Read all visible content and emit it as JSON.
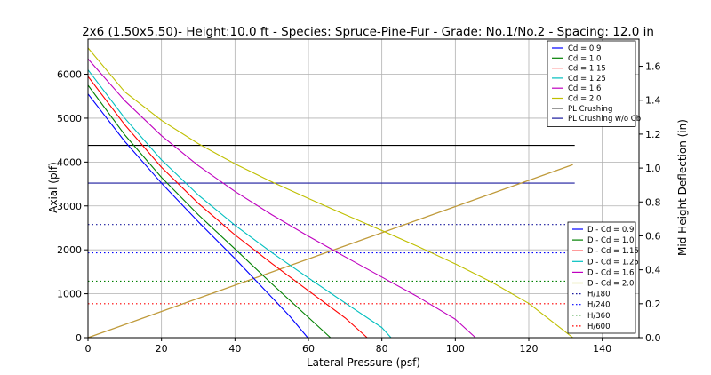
{
  "chart_data": {
    "type": "line",
    "title": "2x6 (1.50x5.50)- Height:10.0 ft - Species: Spruce-Pine-Fur - Grade: No.1/No.2 - Spacing: 12.0 in",
    "xlabel": "Lateral Pressure (psf)",
    "ylabel": "Axial (plf)",
    "y2label": "Mid Height Deflection (in)",
    "xlim": [
      0,
      150
    ],
    "ylim": [
      0,
      6800
    ],
    "y2lim": [
      0,
      1.76
    ],
    "xticks": [
      0,
      20,
      40,
      60,
      80,
      100,
      120,
      140
    ],
    "yticks": [
      0,
      1000,
      2000,
      3000,
      4000,
      5000,
      6000
    ],
    "y2ticks": [
      0.0,
      0.2,
      0.4,
      0.6,
      0.8,
      1.0,
      1.2,
      1.4,
      1.6
    ],
    "grid": true,
    "legend_top_location": "upper-right",
    "legend_bottom_location": "lower-right",
    "interaction_series": [
      {
        "name": "Cd = 0.9",
        "color": "#0000ff",
        "x": [
          0,
          10,
          20,
          30,
          40,
          50,
          55,
          59.8
        ],
        "y": [
          5550,
          4470,
          3520,
          2640,
          1800,
          920,
          480,
          0
        ]
      },
      {
        "name": "Cd = 1.0",
        "color": "#008000",
        "x": [
          0,
          10,
          20,
          30,
          40,
          50,
          60,
          66
        ],
        "y": [
          5750,
          4620,
          3650,
          2800,
          2020,
          1230,
          460,
          0
        ]
      },
      {
        "name": "Cd = 1.15",
        "color": "#ff0000",
        "x": [
          0,
          10,
          20,
          30,
          40,
          50,
          60,
          70,
          76
        ],
        "y": [
          5950,
          4850,
          3880,
          3060,
          2340,
          1690,
          1070,
          450,
          0
        ]
      },
      {
        "name": "Cd = 1.25",
        "color": "#00bfbf",
        "x": [
          0,
          10,
          20,
          30,
          40,
          50,
          60,
          70,
          80,
          82.5
        ],
        "y": [
          6100,
          5000,
          4050,
          3250,
          2560,
          1940,
          1360,
          790,
          230,
          0
        ]
      },
      {
        "name": "Cd = 1.6",
        "color": "#bf00bf",
        "x": [
          0,
          10,
          20,
          30,
          40,
          50,
          60,
          70,
          80,
          90,
          100,
          105.5
        ],
        "y": [
          6350,
          5400,
          4600,
          3920,
          3330,
          2800,
          2310,
          1840,
          1380,
          920,
          420,
          0
        ]
      },
      {
        "name": "Cd = 2.0",
        "color": "#bfbf00",
        "x": [
          0,
          10,
          20,
          30,
          40,
          50,
          60,
          70,
          80,
          90,
          100,
          110,
          120,
          132
        ],
        "y": [
          6600,
          5600,
          4950,
          4420,
          3960,
          3550,
          3170,
          2800,
          2440,
          2070,
          1680,
          1260,
          780,
          0
        ]
      }
    ],
    "crushing_lines": [
      {
        "name": "PL Crushing",
        "color": "#000000",
        "y": 4380
      },
      {
        "name": "PL Crushing w/o Cb",
        "color": "#1a1a9e",
        "y": 3520
      }
    ],
    "deflection_series": [
      {
        "name": "D - Cd = 0.9",
        "color": "#0000ff"
      },
      {
        "name": "D - Cd = 1.0",
        "color": "#008000"
      },
      {
        "name": "D - Cd = 1.15",
        "color": "#ff0000"
      },
      {
        "name": "D - Cd = 1.25",
        "color": "#00bfbf"
      },
      {
        "name": "D - Cd = 1.6",
        "color": "#bf00bf"
      },
      {
        "name": "D - Cd = 2.0",
        "color": "#bfbf00"
      }
    ],
    "deflection_curve": {
      "color": "#bf9a3a",
      "x": [
        0,
        132
      ],
      "y": [
        0,
        1.02
      ]
    },
    "deflection_limits": [
      {
        "name": "H/180",
        "color": "#1a1a9e",
        "y": 0.667
      },
      {
        "name": "H/240",
        "color": "#0000ff",
        "y": 0.5
      },
      {
        "name": "H/360",
        "color": "#008000",
        "y": 0.333
      },
      {
        "name": "H/600",
        "color": "#ff0000",
        "y": 0.2
      }
    ],
    "line_x_end": 132.5
  }
}
